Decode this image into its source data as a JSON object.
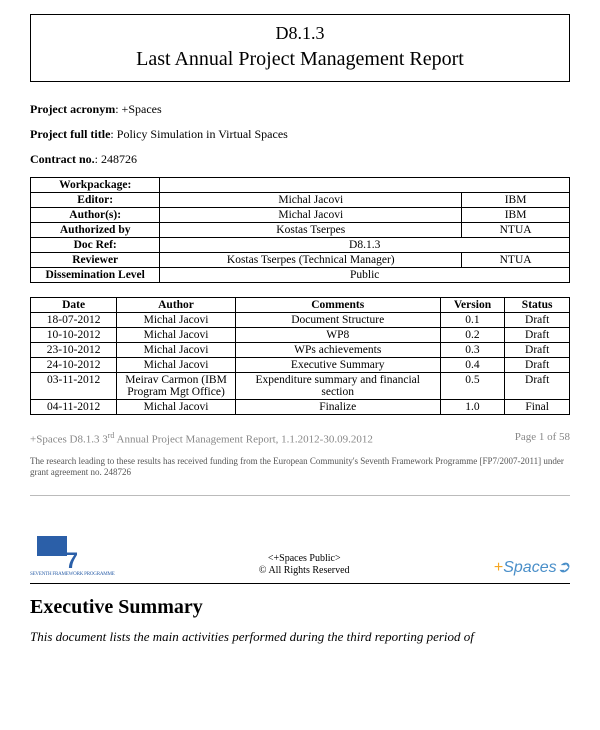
{
  "title": {
    "code": "D8.1.3",
    "main": "Last Annual Project Management Report"
  },
  "meta": {
    "acronym_label": "Project acronym",
    "acronym_value": "+Spaces",
    "fulltitle_label": "Project full title",
    "fulltitle_value": "Policy Simulation in Virtual Spaces",
    "contract_label": "Contract no.",
    "contract_value": "248726"
  },
  "info": {
    "workpackage_label": "Workpackage:",
    "editor_label": "Editor:",
    "editor_name": "Michal Jacovi",
    "editor_org": "IBM",
    "authors_label": "Author(s):",
    "authors_name": "Michal Jacovi",
    "authors_org": "IBM",
    "authorized_label": "Authorized by",
    "authorized_name": "Kostas Tserpes",
    "authorized_org": "NTUA",
    "docref_label": "Doc Ref:",
    "docref_value": "D8.1.3",
    "reviewer_label": "Reviewer",
    "reviewer_name": "Kostas Tserpes (Technical Manager)",
    "reviewer_org": "NTUA",
    "dissem_label": "Dissemination Level",
    "dissem_value": "Public"
  },
  "hist": {
    "h_date": "Date",
    "h_author": "Author",
    "h_comments": "Comments",
    "h_version": "Version",
    "h_status": "Status",
    "rows": [
      {
        "date": "18-07-2012",
        "author": "Michal Jacovi",
        "comments": "Document Structure",
        "version": "0.1",
        "status": "Draft"
      },
      {
        "date": "10-10-2012",
        "author": "Michal Jacovi",
        "comments": "WP8",
        "version": "0.2",
        "status": "Draft"
      },
      {
        "date": "23-10-2012",
        "author": "Michal Jacovi",
        "comments": "WPs achievements",
        "version": "0.3",
        "status": "Draft"
      },
      {
        "date": "24-10-2012",
        "author": "Michal Jacovi",
        "comments": "Executive Summary",
        "version": "0.4",
        "status": "Draft"
      },
      {
        "date": "03-11-2012",
        "author": "Meirav Carmon (IBM Program Mgt Office)",
        "comments": "Expenditure summary and financial section",
        "version": "0.5",
        "status": "Draft"
      },
      {
        "date": "04-11-2012",
        "author": "Michal Jacovi",
        "comments": "Finalize",
        "version": "1.0",
        "status": "Final"
      }
    ]
  },
  "footer": {
    "left_pre": "+Spaces D8.1.3 3",
    "left_post": " Annual Project Management Report, 1.1.2012-30.09.2012",
    "sup": "rd",
    "page": "Page 1 of 58",
    "funding": "The research leading to these results has received funding from the European Community's Seventh Framework Programme [FP7/2007-2011] under grant agreement no. 248726"
  },
  "badges": {
    "fp7_caption": "SEVENTH FRAMEWORK PROGRAMME",
    "pub_line1": "<+Spaces Public>",
    "pub_line2": "© All Rights Reserved",
    "logo_plus": "+",
    "logo_text": "Spaces",
    "logo_swirl": "➲"
  },
  "exec": {
    "heading": "Executive Summary",
    "body": "This document lists the main activities performed during the third reporting period of"
  }
}
